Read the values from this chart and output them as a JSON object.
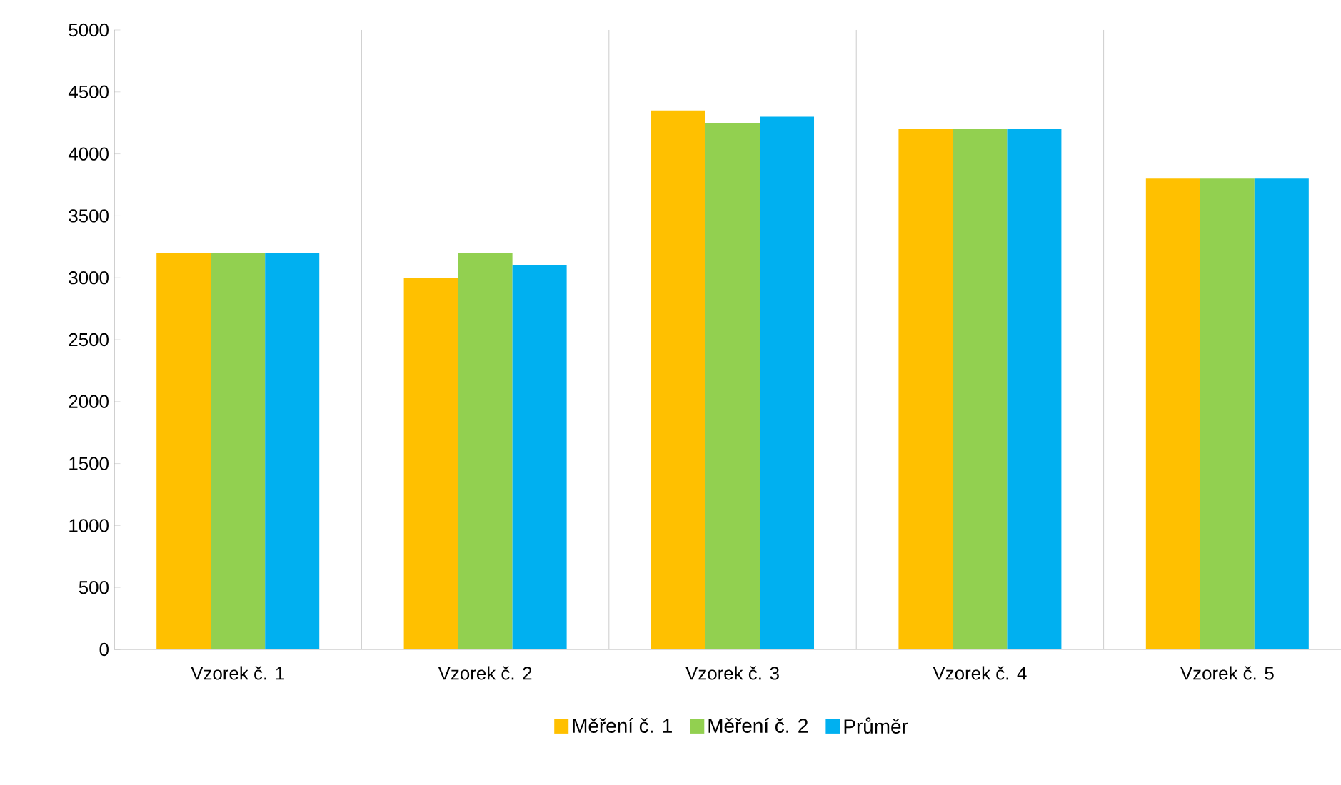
{
  "chart_data": {
    "type": "bar",
    "categories": [
      "Vzorek č. 1",
      "Vzorek č. 2",
      "Vzorek č. 3",
      "Vzorek č. 4",
      "Vzorek č. 5"
    ],
    "series": [
      {
        "name": "Měření č. 1",
        "color": "#ffc000",
        "values": [
          3200,
          3000,
          4350,
          4200,
          3800
        ]
      },
      {
        "name": "Měření č. 2",
        "color": "#92d050",
        "values": [
          3200,
          3200,
          4250,
          4200,
          3800
        ]
      },
      {
        "name": "Průměr",
        "color": "#00b0f0",
        "values": [
          3200,
          3100,
          4300,
          4200,
          3800
        ]
      }
    ],
    "ylim": [
      0,
      5000
    ],
    "yticks": [
      0,
      500,
      1000,
      1500,
      2000,
      2500,
      3000,
      3500,
      4000,
      4500,
      5000
    ],
    "grid": "x",
    "legend": "bottom"
  }
}
